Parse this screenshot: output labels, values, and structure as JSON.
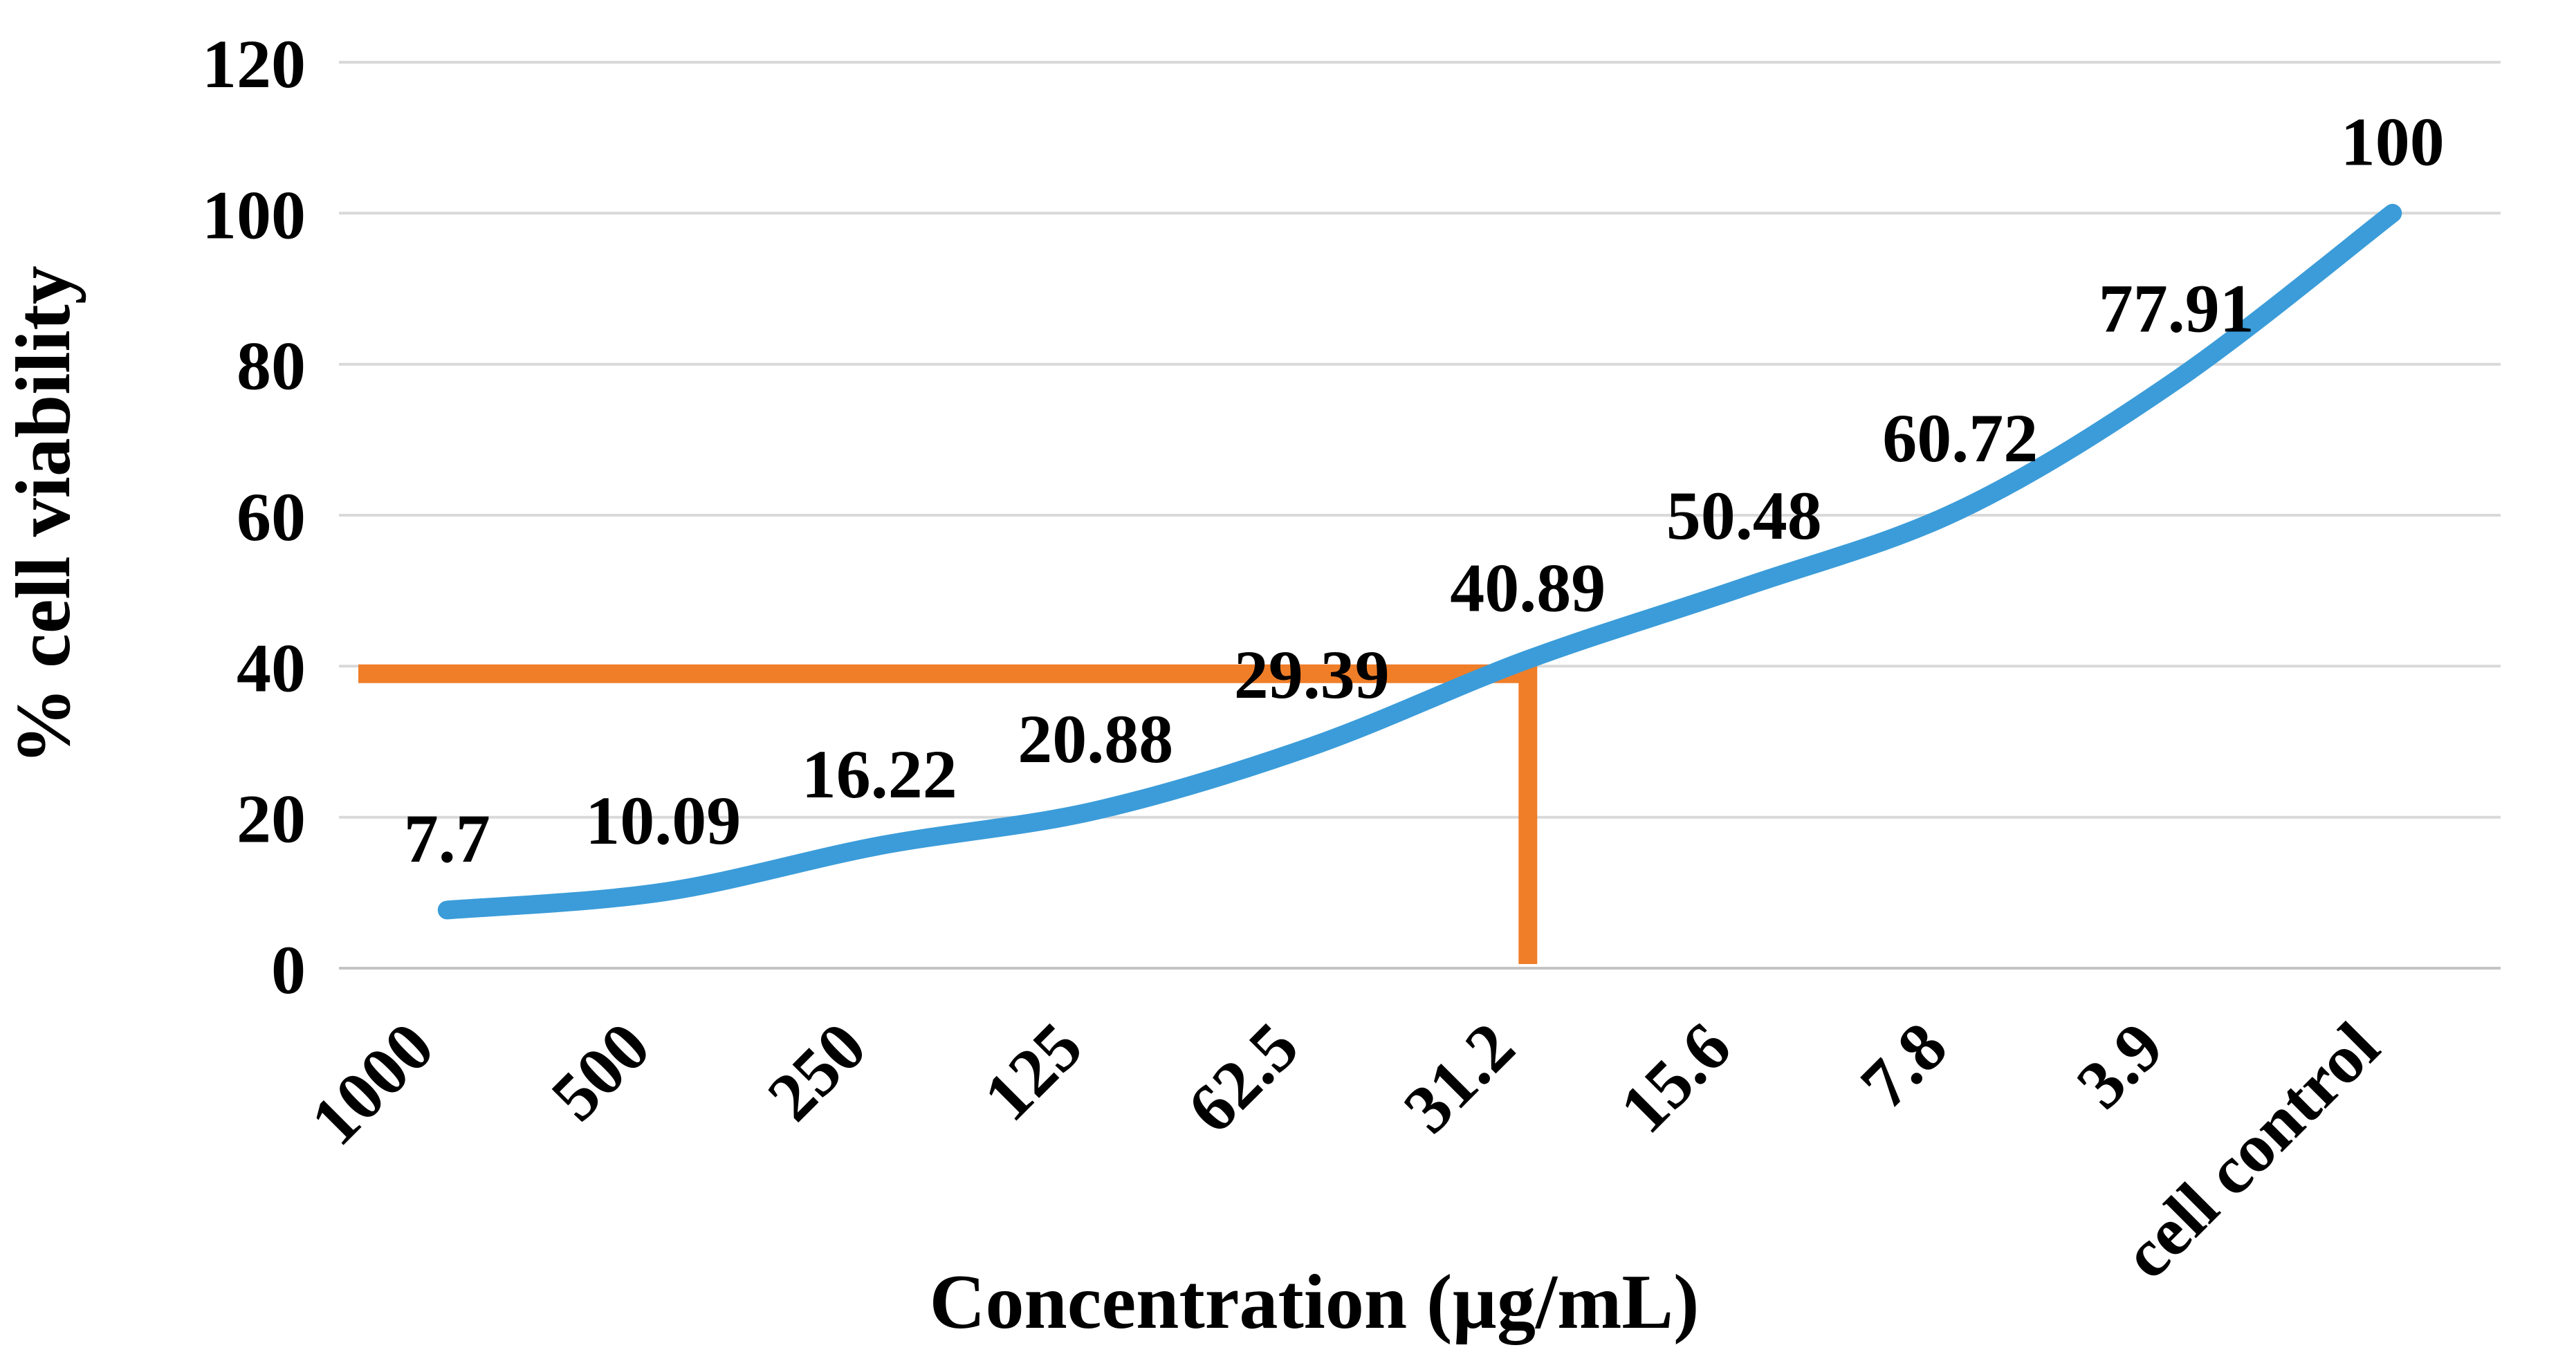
{
  "chart_data": {
    "type": "line",
    "title": "",
    "categories": [
      "1000",
      "500",
      "250",
      "125",
      "62.5",
      "31.2",
      "15.6",
      "7.8",
      "3.9",
      "cell control"
    ],
    "series": [
      {
        "name": "cell viability",
        "values": [
          7.7,
          10.09,
          16.22,
          20.88,
          29.39,
          40.89,
          50.48,
          60.72,
          77.91,
          100
        ],
        "data_labels": [
          "7.7",
          "10.09",
          "16.22",
          "20.88",
          "29.39",
          "40.89",
          "50.48",
          "60.72",
          "77.91",
          "100"
        ],
        "color": "#3B9CD9",
        "style": "smooth-line"
      }
    ],
    "xlabel": "Concentration (µg/mL)",
    "ylabel": "% cell viability",
    "ylim": [
      0,
      120
    ],
    "ytick_step": 20,
    "ytick_labels": [
      "0",
      "20",
      "40",
      "60",
      "80",
      "100",
      "120"
    ],
    "gridlines": "horizontal",
    "legend_position": "none",
    "annotation": {
      "type": "crosshair",
      "color": "#F07E28",
      "horizontal_at_value": 39,
      "vertical_at_category": "31.2"
    },
    "colors": {
      "series_blue": "#3B9CD9",
      "crosshair_orange": "#F07E28",
      "gridline": "#D9D9D9",
      "axis_line": "#C4C4C4",
      "text": "#000000",
      "background": "#FFFFFF"
    }
  }
}
